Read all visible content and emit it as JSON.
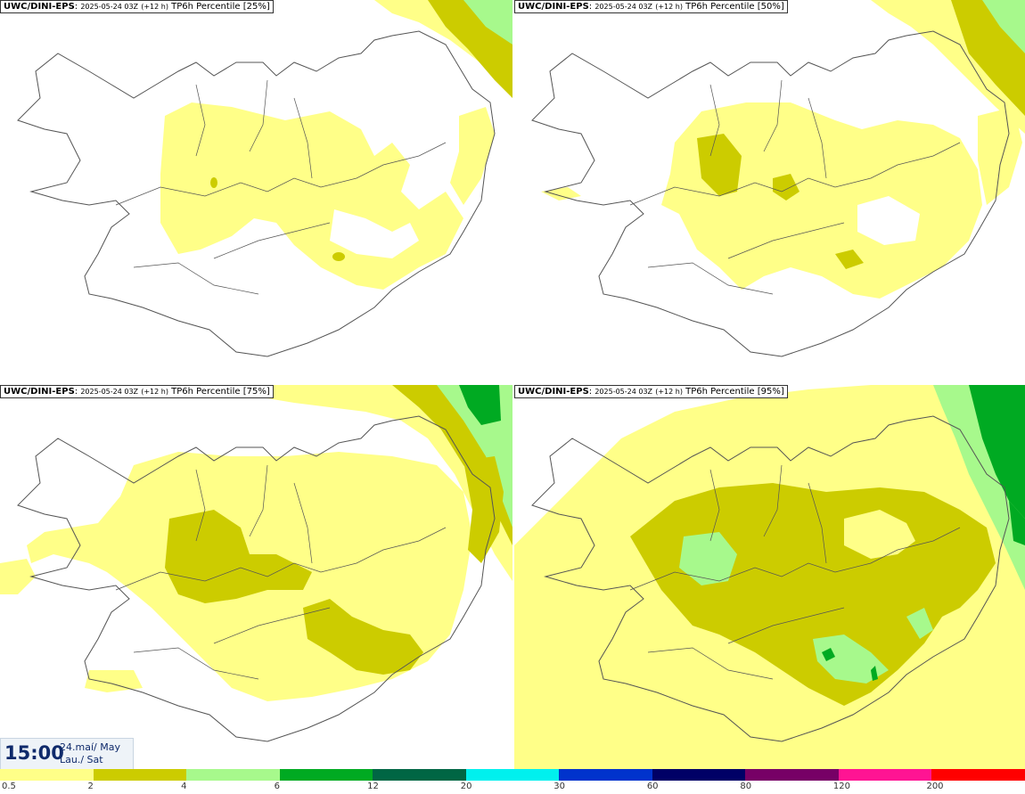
{
  "panels": [
    {
      "model": "UWC/DINI-EPS",
      "run": "2025-05-24 03Z",
      "lead": "(+12 h)",
      "product": "TP6h Percentile",
      "pct": "[25%]"
    },
    {
      "model": "UWC/DINI-EPS",
      "run": "2025-05-24 03Z",
      "lead": "(+12 h)",
      "product": "TP6h Percentile",
      "pct": "[50%]"
    },
    {
      "model": "UWC/DINI-EPS",
      "run": "2025-05-24 03Z",
      "lead": "(+12 h)",
      "product": "TP6h Percentile",
      "pct": "[75%]"
    },
    {
      "model": "UWC/DINI-EPS",
      "run": "2025-05-24 03Z",
      "lead": "(+12 h)",
      "product": "TP6h Percentile",
      "pct": "[95%]"
    }
  ],
  "time": {
    "clock": "15:00",
    "date": "24.maí/ May",
    "weekday": "Lau./ Sat"
  },
  "legend": {
    "labels": [
      "0.5",
      "2",
      "4",
      "6",
      "12",
      "20",
      "30",
      "60",
      "80",
      "120",
      "200"
    ],
    "colors": [
      "#ffff88",
      "#cccc00",
      "#a7f98c",
      "#00aa22",
      "#006644",
      "#00f0ee",
      "#0033cc",
      "#000066",
      "#770066",
      "#ff1493",
      "#ff0000"
    ]
  }
}
